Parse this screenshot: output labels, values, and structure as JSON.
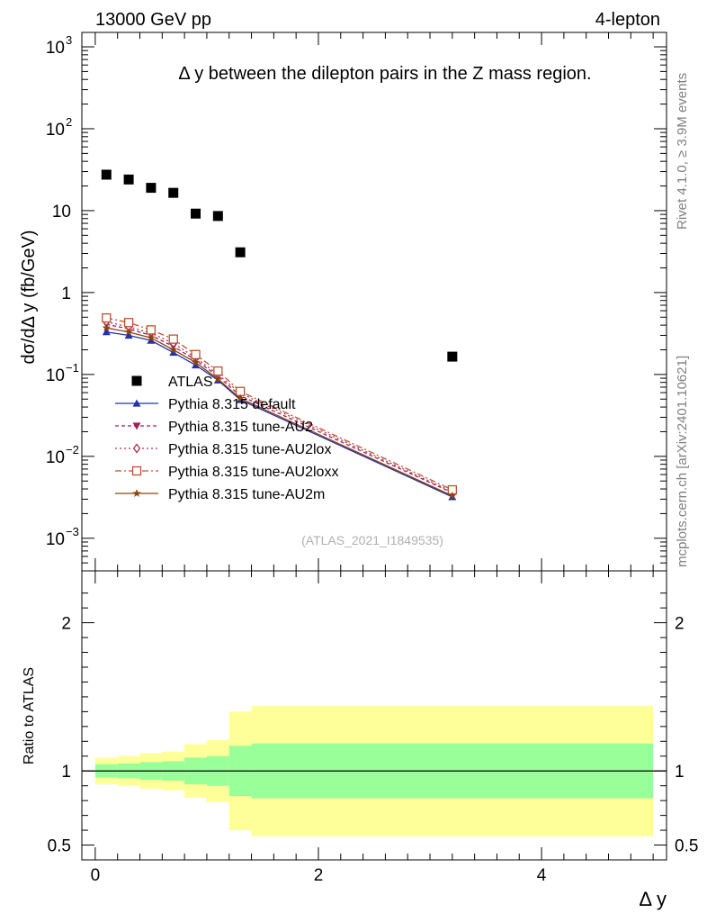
{
  "header": {
    "energy_label": "13000 GeV pp",
    "channel_label": "4-lepton",
    "side_label_rivet": "Rivet 4.1.0, ≥ 3.9M events",
    "side_label_mcplots": "mcplots.cern.ch [arXiv:2401.10621]",
    "analysis_id": "(ATLAS_2021_I1849535)"
  },
  "chart_data": [
    {
      "type": "scatter",
      "panel": "main",
      "title": "Δ y between the dilepton pairs in the Z mass region.",
      "xlabel": "Δ y",
      "ylabel": "dσ/dΔ y (fb/GeV)",
      "yscale": "log",
      "xlim": [
        -0.12,
        5.12
      ],
      "ylim": [
        0.0004,
        1500
      ],
      "yticks": [
        {
          "value": 1000,
          "base": "10",
          "exp": "3"
        },
        {
          "value": 100,
          "base": "10",
          "exp": "2"
        },
        {
          "value": 10,
          "base": "10",
          "exp": ""
        },
        {
          "value": 1,
          "base": "1",
          "exp": ""
        },
        {
          "value": 0.1,
          "base": "10",
          "exp": "−1"
        },
        {
          "value": 0.01,
          "base": "10",
          "exp": "−2"
        },
        {
          "value": 0.001,
          "base": "10",
          "exp": "−3"
        }
      ],
      "series": [
        {
          "name": "ATLAS",
          "color": "#000000",
          "marker": "square",
          "dash": "none",
          "x": [
            0.1,
            0.3,
            0.5,
            0.7,
            0.9,
            1.1,
            1.3,
            3.2
          ],
          "y": [
            27.5,
            24,
            19,
            16.5,
            9.2,
            8.6,
            3.1,
            0.165
          ]
        },
        {
          "name": "Pythia 8.315 default",
          "color": "#2233aa",
          "marker": "triangle-up",
          "dash": "solid",
          "x": [
            0.1,
            0.3,
            0.5,
            0.7,
            0.9,
            1.1,
            1.3,
            3.2
          ],
          "y": [
            0.33,
            0.3,
            0.26,
            0.185,
            0.13,
            0.085,
            0.049,
            0.0032
          ]
        },
        {
          "name": "Pythia 8.315 tune-AU2",
          "color": "#a0205a",
          "marker": "triangle-down",
          "dash": "4,3",
          "x": [
            0.1,
            0.3,
            0.5,
            0.7,
            0.9,
            1.1,
            1.3,
            3.2
          ],
          "y": [
            0.41,
            0.36,
            0.3,
            0.22,
            0.15,
            0.095,
            0.055,
            0.0036
          ]
        },
        {
          "name": "Pythia 8.315 tune-AU2lox",
          "color": "#b03050",
          "marker": "diamond-open",
          "dash": "2,3",
          "x": [
            0.1,
            0.3,
            0.5,
            0.7,
            0.9,
            1.1,
            1.3,
            3.2
          ],
          "y": [
            0.44,
            0.38,
            0.32,
            0.24,
            0.16,
            0.1,
            0.059,
            0.0037
          ]
        },
        {
          "name": "Pythia 8.315 tune-AU2loxx",
          "color": "#c05030",
          "marker": "square-open",
          "dash": "7,3,2,3",
          "x": [
            0.1,
            0.3,
            0.5,
            0.7,
            0.9,
            1.1,
            1.3,
            3.2
          ],
          "y": [
            0.49,
            0.43,
            0.35,
            0.27,
            0.175,
            0.11,
            0.062,
            0.0039
          ]
        },
        {
          "name": "Pythia 8.315 tune-AU2m",
          "color": "#8b4513",
          "marker": "star",
          "dash": "solid",
          "x": [
            0.1,
            0.3,
            0.5,
            0.7,
            0.9,
            1.1,
            1.3,
            3.2
          ],
          "y": [
            0.37,
            0.33,
            0.28,
            0.2,
            0.14,
            0.088,
            0.051,
            0.0033
          ]
        }
      ]
    },
    {
      "type": "area",
      "panel": "ratio",
      "xlabel": "Δ y",
      "ylabel": "Ratio to ATLAS",
      "xlim": [
        -0.12,
        5.12
      ],
      "ylim": [
        0.4,
        2.35
      ],
      "yticks": [
        0.5,
        1,
        2
      ],
      "ytick_labels": [
        "0.5",
        "1",
        "2"
      ],
      "xticks": [
        0,
        2,
        4
      ],
      "xtick_labels": [
        "0",
        "2",
        "4"
      ],
      "reference_line": 1,
      "bands": [
        {
          "name": "total uncertainty",
          "color": "#ffff99",
          "edges": [
            0.0,
            0.2,
            0.4,
            0.6,
            0.8,
            1.0,
            1.2,
            1.4,
            5.0
          ],
          "low": [
            0.91,
            0.9,
            0.88,
            0.87,
            0.82,
            0.79,
            0.6,
            0.56
          ],
          "high": [
            1.09,
            1.1,
            1.12,
            1.13,
            1.18,
            1.21,
            1.4,
            1.44
          ]
        },
        {
          "name": "statistical uncertainty",
          "color": "#99ff99",
          "edges": [
            0.0,
            0.2,
            0.4,
            0.6,
            0.8,
            1.0,
            1.2,
            1.4,
            5.0
          ],
          "low": [
            0.955,
            0.95,
            0.94,
            0.935,
            0.91,
            0.9,
            0.83,
            0.815
          ],
          "high": [
            1.045,
            1.05,
            1.06,
            1.065,
            1.09,
            1.1,
            1.17,
            1.185
          ]
        }
      ]
    }
  ]
}
